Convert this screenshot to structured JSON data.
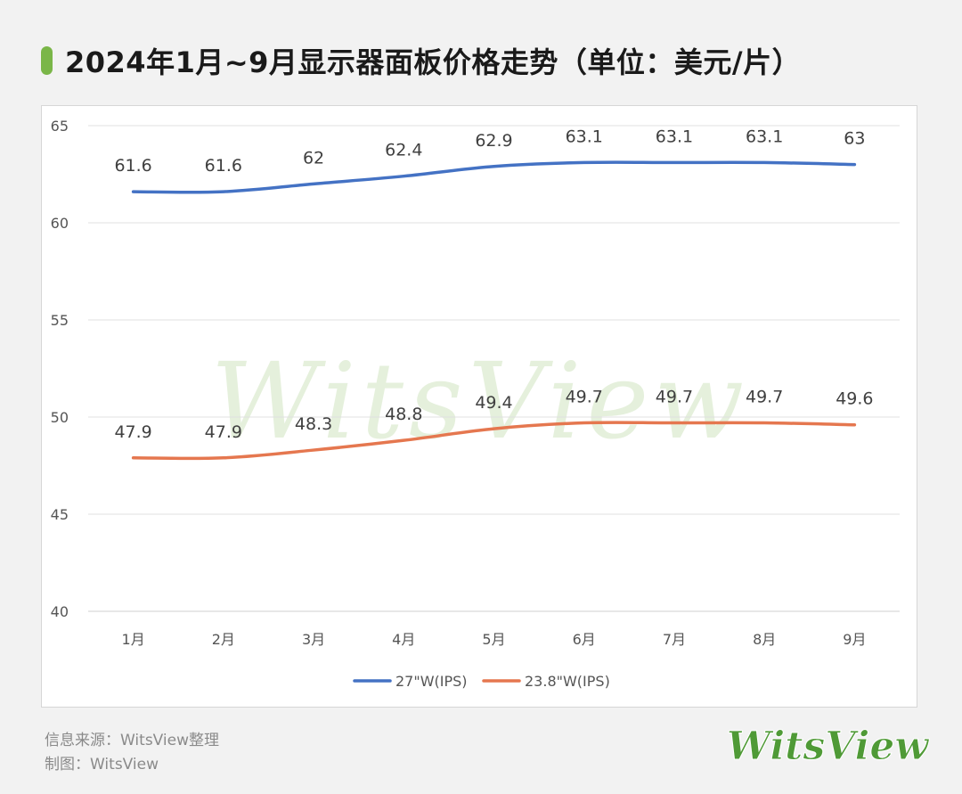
{
  "title": "2024年1月~9月显示器面板价格走势（单位：美元/片）",
  "colors": {
    "accent": "#7ab648",
    "series_27": "#4472c4",
    "series_238": "#e5774f",
    "grid": "#e0e0e0",
    "watermark": "#cfe3c0"
  },
  "watermark_text": "WitsView",
  "footer": {
    "source": "信息来源：WitsView整理",
    "credit": "制图：WitsView"
  },
  "brand_logo_text": "WitsView",
  "chart_data": {
    "type": "line",
    "title": "2024年1月~9月显示器面板价格走势（单位：美元/片）",
    "categories": [
      "1月",
      "2月",
      "3月",
      "4月",
      "5月",
      "6月",
      "7月",
      "8月",
      "9月"
    ],
    "series": [
      {
        "name": "27\"W(IPS)",
        "values": [
          61.6,
          61.6,
          62,
          62.4,
          62.9,
          63.1,
          63.1,
          63.1,
          63
        ],
        "color": "#4472c4"
      },
      {
        "name": "23.8\"W(IPS)",
        "values": [
          47.9,
          47.9,
          48.3,
          48.8,
          49.4,
          49.7,
          49.7,
          49.7,
          49.6
        ],
        "color": "#e5774f"
      }
    ],
    "ylim": [
      40,
      65
    ],
    "yticks": [
      40,
      45,
      50,
      55,
      60,
      65
    ],
    "grid": true,
    "smooth": true,
    "data_labels": true,
    "legend_position": "bottom-center",
    "xlabel": "",
    "ylabel": ""
  }
}
